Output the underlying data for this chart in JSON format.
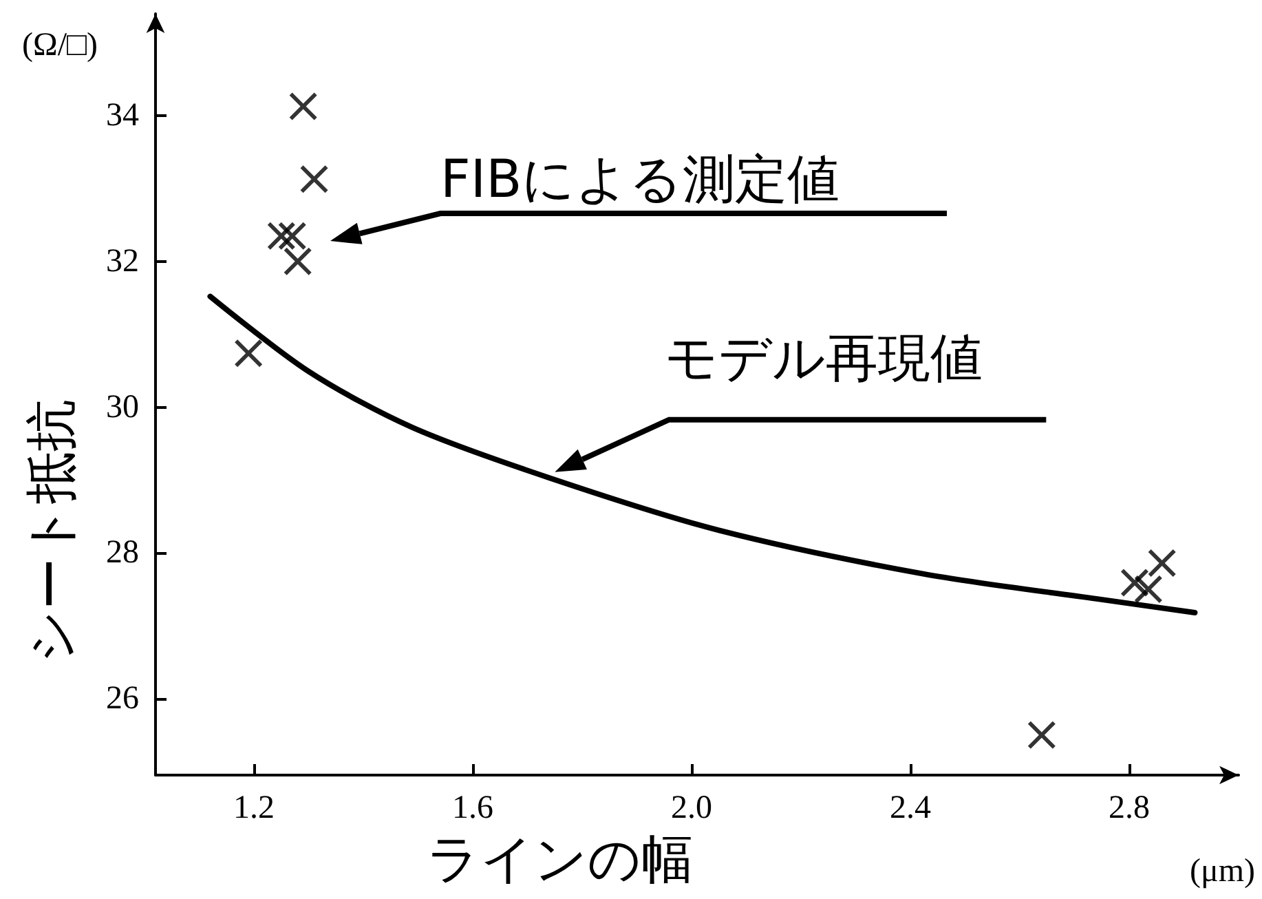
{
  "chart_data": {
    "type": "scatter",
    "xlabel": "ラインの幅",
    "ylabel": "シート抵抗",
    "annotations": [
      "(Ω/□)",
      "(μm)",
      "FIBによる測定値",
      {
        "text": "モデル再現値",
        "x": 1.75,
        "y": 29.11
      }
    ],
    "series": [
      {
        "color": "#000000",
        "marker": "cross",
        "x": [
          1.29,
          1.31,
          1.25,
          1.27,
          1.28,
          1.19,
          2.86,
          2.81,
          2.835,
          2.64
        ],
        "values": [
          34.13,
          33.13,
          32.35,
          32.35,
          32.0,
          30.74,
          27.86,
          27.59,
          27.5,
          25.5
        ]
      },
      {
        "type": "line",
        "color": "#000000",
        "marker": "none",
        "x": [
          1.12,
          1.3,
          1.49,
          1.74,
          2.05,
          2.425,
          2.74,
          2.92
        ],
        "values": [
          31.52,
          30.49,
          29.72,
          29.03,
          28.31,
          27.71,
          27.37,
          27.18
        ]
      }
    ],
    "xlim": [
      1.02,
      3.0
    ],
    "xticks": [
      1.2,
      1.6,
      {
        "value": 2.0,
        "label": "2.0"
      },
      2.4,
      2.8
    ],
    "ylim": [
      24.95,
      35.4
    ],
    "yticks": [
      26,
      28,
      30,
      32,
      34
    ],
    "grid": false
  }
}
